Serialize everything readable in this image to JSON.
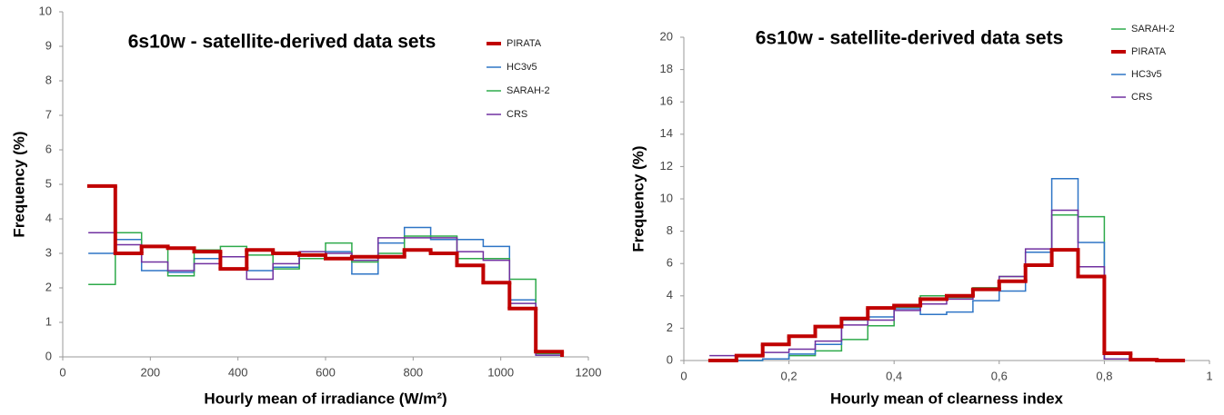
{
  "chart_data": [
    {
      "type": "histogram",
      "title": "6s10w - satellite-derived data sets",
      "xlabel": "Hourly mean of irradiance (W/m²)",
      "ylabel": "Frequency (%)",
      "bins": [
        60,
        120,
        180,
        240,
        300,
        360,
        420,
        480,
        540,
        600,
        660,
        720,
        780,
        840,
        900,
        960,
        1020,
        1080,
        1140
      ],
      "xlim": [
        0,
        1200
      ],
      "xticks": [
        0,
        200,
        400,
        600,
        800,
        1000,
        1200
      ],
      "ylim": [
        0,
        10
      ],
      "yticks": [
        0,
        1,
        2,
        3,
        4,
        5,
        6,
        7,
        8,
        9,
        10
      ],
      "series": [
        {
          "name": "PIRATA",
          "color": "#c00000",
          "line_width": 4,
          "values": [
            4.95,
            3.0,
            3.2,
            3.15,
            3.05,
            2.55,
            3.1,
            3.0,
            2.95,
            2.85,
            2.9,
            2.9,
            3.1,
            3.0,
            2.65,
            2.15,
            1.4,
            0.15
          ]
        },
        {
          "name": "HC3v5",
          "color": "#2e75c6",
          "line_width": 1.5,
          "values": [
            3.0,
            3.4,
            2.5,
            2.45,
            2.85,
            2.9,
            2.5,
            2.6,
            2.85,
            3.05,
            2.4,
            3.3,
            3.75,
            3.4,
            3.4,
            3.2,
            1.65,
            0.05
          ]
        },
        {
          "name": "SARAH-2",
          "color": "#2eaa4a",
          "line_width": 1.5,
          "values": [
            2.1,
            3.6,
            3.2,
            2.35,
            3.1,
            3.2,
            2.95,
            2.55,
            2.85,
            3.3,
            2.75,
            3.0,
            3.5,
            3.5,
            2.85,
            2.85,
            2.25,
            0.1
          ]
        },
        {
          "name": "CRS",
          "color": "#7030a0",
          "line_width": 1.5,
          "values": [
            3.6,
            3.25,
            2.75,
            2.5,
            2.7,
            2.9,
            2.25,
            2.7,
            3.05,
            3.0,
            2.8,
            3.45,
            3.45,
            3.45,
            3.05,
            2.8,
            1.55,
            0.05
          ]
        }
      ]
    },
    {
      "type": "histogram",
      "title": "6s10w - satellite-derived data sets",
      "xlabel": "Hourly mean of clearness index",
      "ylabel": "Frequency (%)",
      "bins": [
        0.05,
        0.1,
        0.15,
        0.2,
        0.25,
        0.3,
        0.35,
        0.4,
        0.45,
        0.5,
        0.55,
        0.6,
        0.65,
        0.7,
        0.75,
        0.8,
        0.85,
        0.9,
        0.95
      ],
      "xlim": [
        0,
        1
      ],
      "xticks": [
        0,
        {
          "value": 0.2,
          "label": "0,2"
        },
        {
          "value": 0.4,
          "label": "0,4"
        },
        {
          "value": 0.6,
          "label": "0,6"
        },
        {
          "value": 0.8,
          "label": "0,8"
        },
        1
      ],
      "ylim": [
        0,
        20
      ],
      "yticks": [
        0,
        2,
        4,
        6,
        8,
        10,
        12,
        14,
        16,
        18,
        20
      ],
      "series": [
        {
          "name": "SARAH-2",
          "color": "#2eaa4a",
          "line_width": 1.5,
          "values": [
            0,
            0,
            0.1,
            0.3,
            0.6,
            1.3,
            2.15,
            3.3,
            4.0,
            3.9,
            4.5,
            5.2,
            6.7,
            9.0,
            8.9,
            0.1,
            0,
            0
          ]
        },
        {
          "name": "PIRATA",
          "color": "#c00000",
          "line_width": 4,
          "values": [
            0,
            0.3,
            1.0,
            1.5,
            2.1,
            2.6,
            3.25,
            3.4,
            3.8,
            4.0,
            4.4,
            4.9,
            5.9,
            6.85,
            5.2,
            0.45,
            0.05,
            0
          ]
        },
        {
          "name": "HC3v5",
          "color": "#2e75c6",
          "line_width": 1.5,
          "values": [
            0,
            0,
            0.1,
            0.4,
            1.0,
            2.5,
            2.7,
            3.2,
            2.85,
            3.0,
            3.7,
            4.3,
            6.7,
            11.25,
            7.3,
            0.1,
            0,
            0
          ]
        },
        {
          "name": "CRS",
          "color": "#7030a0",
          "line_width": 1.5,
          "values": [
            0.3,
            0.3,
            0.5,
            0.7,
            1.2,
            2.2,
            2.5,
            3.1,
            3.5,
            3.8,
            4.4,
            5.2,
            6.9,
            9.3,
            5.8,
            0.1,
            0,
            0
          ]
        }
      ]
    }
  ]
}
